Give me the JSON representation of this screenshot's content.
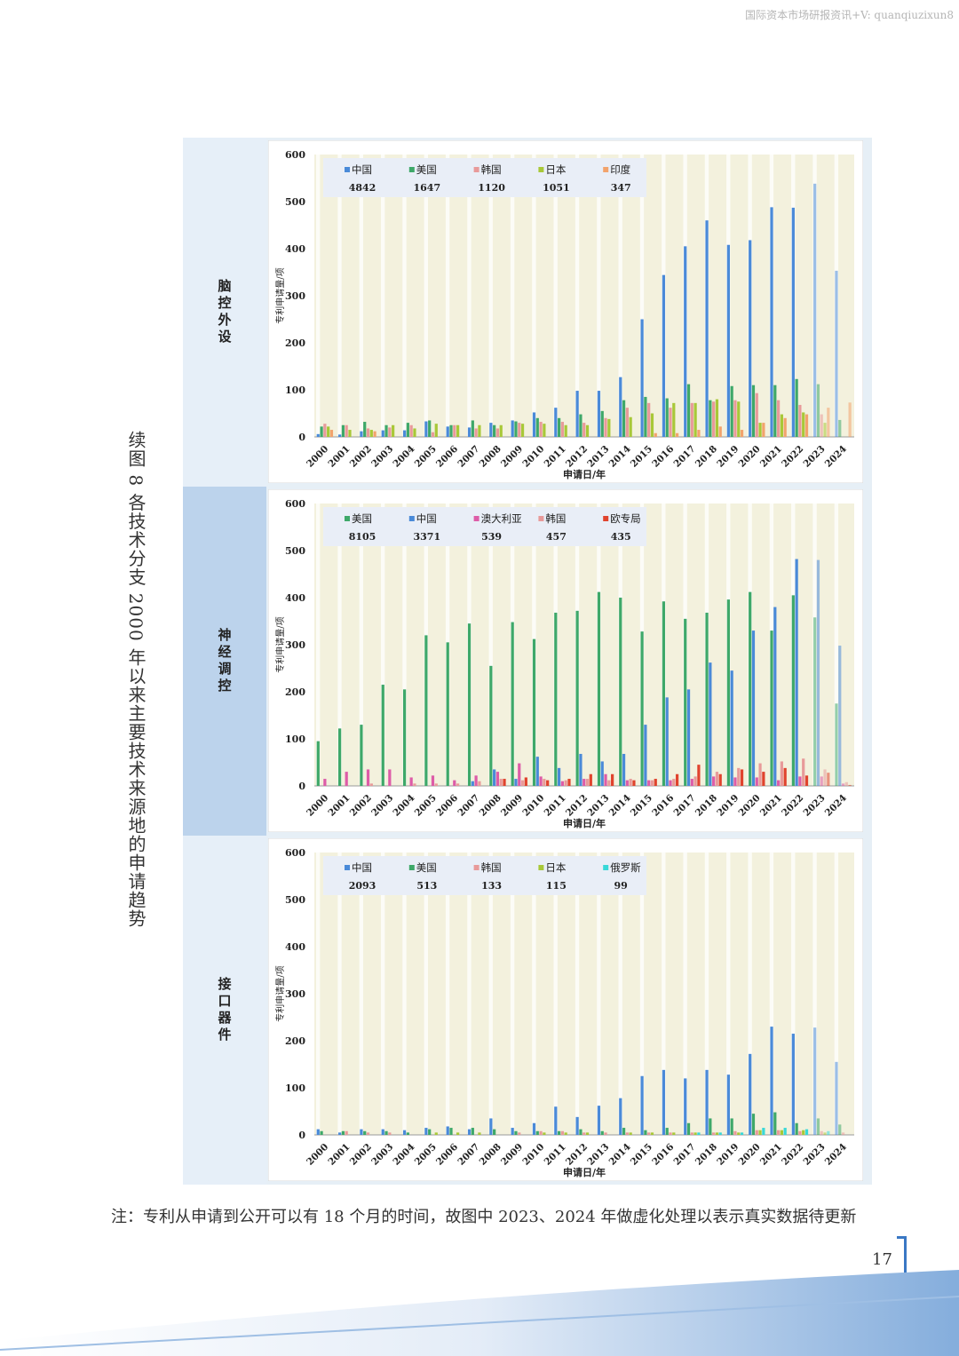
{
  "watermark": "国际资本市场研报资讯+V: quanqiuzixun8",
  "figure_title": "续图 8 各技术分支 2000 年以来主要技术来源地的申请趋势",
  "note": "注：专利从申请到公开可以有 18 个月的时间，故图中 2023、2024 年做虚化处理以表示真实数据待更新",
  "page_number": "17",
  "colors": {
    "page_bg": "#ffffff",
    "label_col_1": "#e6eff8",
    "label_col_2": "#bcd3ec",
    "label_col_3": "#e6eff8",
    "plot_bg": "#f3f1dd",
    "legend_bg": "#e9eef7",
    "grid_col": "#ffffff",
    "pale_col": "#e6eff6"
  },
  "chart_data": [
    {
      "panel_label": "脑控外设",
      "type": "bar",
      "title": "",
      "xlabel": "申请日/年",
      "ylabel": "专利申请量/项",
      "ylim": [
        0,
        600
      ],
      "yticks": [
        "0",
        "100",
        "200",
        "300",
        "400",
        "500",
        "600"
      ],
      "categories": [
        "2000",
        "2001",
        "2002",
        "2003",
        "2004",
        "2005",
        "2006",
        "2007",
        "2008",
        "2009",
        "2010",
        "2011",
        "2012",
        "2013",
        "2014",
        "2015",
        "2016",
        "2017",
        "2018",
        "2019",
        "2020",
        "2021",
        "2022",
        "2023",
        "2024"
      ],
      "series": [
        {
          "name": "中国",
          "total": "4842",
          "color": "#4a8ad8",
          "values": [
            6,
            5,
            12,
            14,
            14,
            33,
            22,
            20,
            30,
            35,
            52,
            62,
            98,
            98,
            127,
            250,
            344,
            405,
            460,
            408,
            418,
            488,
            487,
            538,
            353
          ]
        },
        {
          "name": "美国",
          "total": "1647",
          "color": "#3ea869",
          "values": [
            22,
            25,
            32,
            25,
            30,
            35,
            25,
            35,
            25,
            33,
            40,
            40,
            48,
            55,
            78,
            85,
            82,
            112,
            78,
            108,
            110,
            110,
            123,
            112,
            36
          ]
        },
        {
          "name": "韩国",
          "total": "1120",
          "color": "#e89a9a",
          "values": [
            28,
            25,
            18,
            20,
            25,
            10,
            25,
            18,
            18,
            30,
            32,
            32,
            30,
            40,
            62,
            72,
            62,
            72,
            75,
            78,
            93,
            78,
            68,
            48,
            0
          ]
        },
        {
          "name": "日本",
          "total": "1051",
          "color": "#a8c838",
          "values": [
            22,
            15,
            15,
            25,
            18,
            28,
            25,
            25,
            25,
            28,
            28,
            25,
            25,
            38,
            42,
            50,
            72,
            72,
            80,
            75,
            30,
            48,
            52,
            30,
            0
          ]
        },
        {
          "name": "印度",
          "total": "347",
          "color": "#f2a36c",
          "values": [
            15,
            0,
            12,
            0,
            0,
            0,
            0,
            0,
            0,
            0,
            0,
            0,
            0,
            0,
            0,
            8,
            8,
            15,
            22,
            15,
            30,
            40,
            48,
            62,
            73
          ]
        }
      ]
    },
    {
      "panel_label": "神经调控",
      "type": "bar",
      "title": "",
      "xlabel": "申请日/年",
      "ylabel": "专利申请量/项",
      "ylim": [
        0,
        600
      ],
      "yticks": [
        "0",
        "100",
        "200",
        "300",
        "400",
        "500",
        "600"
      ],
      "categories": [
        "2000",
        "2001",
        "2002",
        "2003",
        "2004",
        "2005",
        "2006",
        "2007",
        "2008",
        "2009",
        "2010",
        "2011",
        "2012",
        "2013",
        "2014",
        "2015",
        "2016",
        "2017",
        "2018",
        "2019",
        "2020",
        "2021",
        "2022",
        "2023",
        "2024"
      ],
      "series": [
        {
          "name": "美国",
          "total": "8105",
          "color": "#3ea869",
          "values": [
            95,
            122,
            130,
            215,
            205,
            320,
            305,
            345,
            255,
            348,
            312,
            368,
            372,
            412,
            400,
            328,
            392,
            355,
            368,
            396,
            412,
            330,
            405,
            358,
            175
          ]
        },
        {
          "name": "中国",
          "total": "3371",
          "color": "#4a8ad8",
          "values": [
            0,
            0,
            0,
            0,
            0,
            0,
            0,
            10,
            35,
            15,
            62,
            38,
            68,
            52,
            68,
            130,
            188,
            205,
            262,
            245,
            330,
            380,
            482,
            480,
            298
          ]
        },
        {
          "name": "澳大利亚",
          "total": "539",
          "color": "#dd5ca8",
          "values": [
            15,
            30,
            35,
            35,
            18,
            22,
            12,
            22,
            30,
            48,
            20,
            10,
            15,
            25,
            12,
            12,
            12,
            15,
            20,
            18,
            18,
            12,
            20,
            20,
            5
          ]
        },
        {
          "name": "韩国",
          "total": "457",
          "color": "#e89a9a",
          "values": [
            0,
            0,
            5,
            0,
            5,
            5,
            5,
            10,
            15,
            12,
            15,
            12,
            15,
            12,
            15,
            12,
            15,
            20,
            30,
            38,
            48,
            52,
            58,
            35,
            8
          ]
        },
        {
          "name": "欧专局",
          "total": "435",
          "color": "#e0432e",
          "values": [
            0,
            0,
            0,
            0,
            0,
            0,
            0,
            0,
            15,
            18,
            12,
            15,
            25,
            25,
            12,
            15,
            25,
            45,
            25,
            35,
            30,
            38,
            22,
            28,
            2
          ]
        }
      ]
    },
    {
      "panel_label": "接口器件",
      "type": "bar",
      "title": "",
      "xlabel": "申请日/年",
      "ylabel": "专利申请量/项",
      "ylim": [
        0,
        600
      ],
      "yticks": [
        "0",
        "100",
        "200",
        "300",
        "400",
        "500",
        "600"
      ],
      "categories": [
        "2000",
        "2001",
        "2002",
        "2003",
        "2004",
        "2005",
        "2006",
        "2007",
        "2008",
        "2009",
        "2010",
        "2011",
        "2012",
        "2013",
        "2014",
        "2015",
        "2016",
        "2017",
        "2018",
        "2019",
        "2020",
        "2021",
        "2022",
        "2023",
        "2024"
      ],
      "series": [
        {
          "name": "中国",
          "total": "2093",
          "color": "#4a8ad8",
          "values": [
            12,
            5,
            12,
            12,
            10,
            15,
            18,
            12,
            35,
            15,
            25,
            60,
            38,
            62,
            78,
            125,
            138,
            120,
            138,
            128,
            172,
            230,
            215,
            228,
            155
          ]
        },
        {
          "name": "美国",
          "total": "513",
          "color": "#3ea869",
          "values": [
            8,
            8,
            8,
            8,
            5,
            12,
            15,
            15,
            12,
            8,
            8,
            8,
            12,
            8,
            15,
            10,
            15,
            25,
            35,
            35,
            45,
            48,
            25,
            35,
            22
          ]
        },
        {
          "name": "韩国",
          "total": "133",
          "color": "#e89a9a",
          "values": [
            0,
            8,
            5,
            5,
            0,
            0,
            0,
            0,
            0,
            5,
            8,
            8,
            5,
            5,
            5,
            5,
            5,
            5,
            5,
            8,
            10,
            10,
            8,
            8,
            5
          ]
        },
        {
          "name": "日本",
          "total": "115",
          "color": "#a8c838",
          "values": [
            0,
            0,
            0,
            0,
            0,
            5,
            5,
            5,
            0,
            0,
            5,
            5,
            5,
            0,
            5,
            5,
            5,
            5,
            5,
            5,
            10,
            10,
            10,
            5,
            0
          ]
        },
        {
          "name": "俄罗斯",
          "total": "99",
          "color": "#38d8d8",
          "values": [
            0,
            0,
            0,
            0,
            0,
            0,
            0,
            0,
            0,
            0,
            0,
            0,
            0,
            0,
            0,
            0,
            0,
            5,
            5,
            5,
            15,
            15,
            12,
            8,
            0
          ]
        }
      ]
    }
  ]
}
